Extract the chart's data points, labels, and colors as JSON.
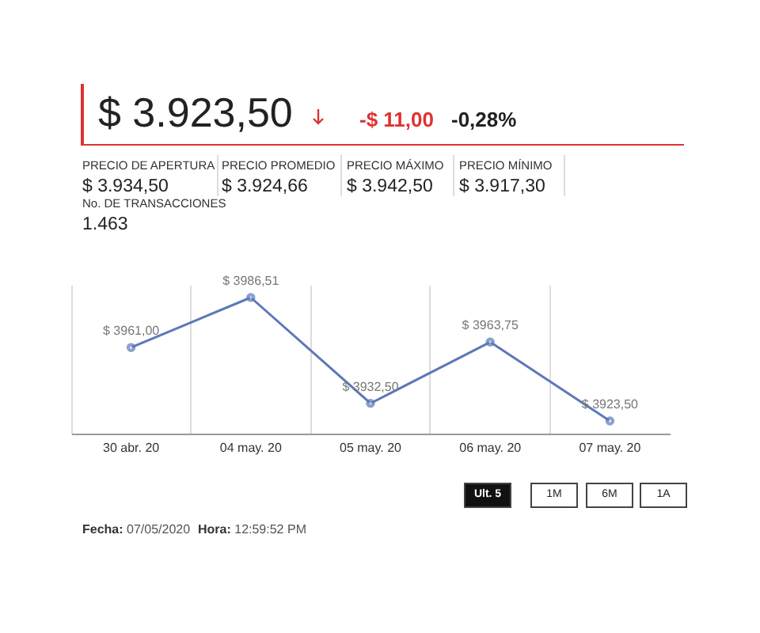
{
  "chart_data": {
    "type": "line",
    "title": "$ 3.923,50",
    "annotations": [
      "-$ 11,00",
      "-0,28%",
      "PRECIO DE APERTURA",
      "$ 3.934,50",
      "PRECIO PROMEDIO",
      "$ 3.924,66",
      "PRECIO MÁXIMO",
      "$ 3.942,50",
      "PRECIO MÍNIMO",
      "$ 3.917,30",
      "No. DE TRANSACCIONES",
      "1.463",
      "Ult. 5",
      "1M",
      "6M",
      "1A",
      "Fecha: 07/05/2020",
      "Hora: 12:59:52 PM"
    ],
    "categories": [
      "30 abr. 20",
      "04 may. 20",
      "05 may. 20",
      "06 may. 20",
      "07 may. 20"
    ],
    "series": [
      {
        "color": "#5b78b8",
        "values": [
          3961.0,
          3986.51,
          3932.5,
          3963.75,
          3923.5
        ],
        "value_labels": [
          "$ 3961,00",
          "$ 3986,51",
          "$ 3932,50",
          "$ 3963,75",
          "$ 3923,50"
        ]
      }
    ],
    "grid": "x",
    "marker": "circle",
    "tick_labels": "x"
  }
}
